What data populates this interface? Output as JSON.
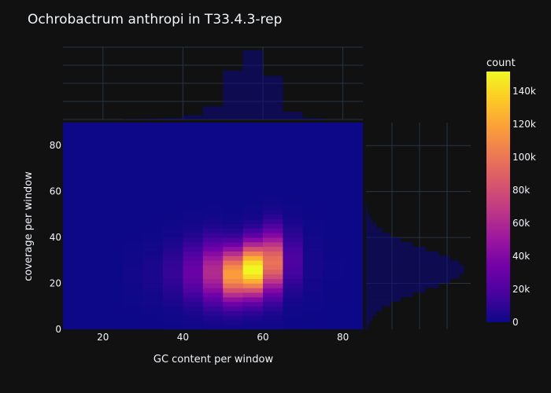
{
  "chart_data": {
    "type": "heatmap",
    "title": "Ochrobactrum anthropi in T33.4.3-rep",
    "xlabel": "GC content per window",
    "ylabel": "coverage per window",
    "xlim": [
      10,
      85
    ],
    "ylim": [
      0,
      90
    ],
    "x_ticks": [
      20,
      40,
      60,
      80
    ],
    "y_ticks": [
      0,
      20,
      40,
      60,
      80
    ],
    "x_bin_width": 5,
    "y_bin_width": 2,
    "colorbar": {
      "title": "count",
      "range": [
        0,
        152000
      ],
      "ticks": [
        {
          "value": 0,
          "label": "0"
        },
        {
          "value": 20000,
          "label": "20k"
        },
        {
          "value": 40000,
          "label": "40k"
        },
        {
          "value": 60000,
          "label": "60k"
        },
        {
          "value": 80000,
          "label": "80k"
        },
        {
          "value": 100000,
          "label": "100k"
        },
        {
          "value": 120000,
          "label": "120k"
        },
        {
          "value": 140000,
          "label": "140k"
        }
      ],
      "colorscale": [
        "#0d0887",
        "#46039f",
        "#7201a8",
        "#9c179e",
        "#bd3786",
        "#d8576b",
        "#ed7953",
        "#fb9f3a",
        "#fdca26",
        "#f0f921"
      ]
    },
    "column_profiles": [
      {
        "x_center": 12.5,
        "peak": 0,
        "center": 24,
        "width": 10
      },
      {
        "x_center": 17.5,
        "peak": 0,
        "center": 24,
        "width": 10
      },
      {
        "x_center": 22.5,
        "peak": 0,
        "center": 24,
        "width": 10
      },
      {
        "x_center": 27.5,
        "peak": 1500,
        "center": 24,
        "width": 9
      },
      {
        "x_center": 32.5,
        "peak": 4000,
        "center": 24,
        "width": 9
      },
      {
        "x_center": 37.5,
        "peak": 12000,
        "center": 25,
        "width": 9
      },
      {
        "x_center": 42.5,
        "peak": 30000,
        "center": 25,
        "width": 9
      },
      {
        "x_center": 47.5,
        "peak": 62000,
        "center": 25,
        "width": 9
      },
      {
        "x_center": 52.5,
        "peak": 118000,
        "center": 24,
        "width": 8
      },
      {
        "x_center": 57.5,
        "peak": 152000,
        "center": 26,
        "width": 8
      },
      {
        "x_center": 62.5,
        "peak": 98000,
        "center": 29,
        "width": 9
      },
      {
        "x_center": 67.5,
        "peak": 20000,
        "center": 30,
        "width": 9
      },
      {
        "x_center": 72.5,
        "peak": 3000,
        "center": 28,
        "width": 10
      },
      {
        "x_center": 77.5,
        "peak": 500,
        "center": 26,
        "width": 10
      },
      {
        "x_center": 82.5,
        "peak": 0,
        "center": 26,
        "width": 10
      }
    ],
    "top_histogram": {
      "x_centers": [
        12.5,
        17.5,
        22.5,
        27.5,
        32.5,
        37.5,
        42.5,
        47.5,
        52.5,
        57.5,
        62.5,
        67.5,
        72.5,
        77.5,
        82.5
      ],
      "relative_heights": [
        0,
        0,
        0,
        0.005,
        0.01,
        0.02,
        0.06,
        0.19,
        0.71,
        1.0,
        0.63,
        0.11,
        0.02,
        0,
        0
      ]
    },
    "right_histogram": {
      "note_units": "relative counts by coverage",
      "center": 26,
      "width": 9
    }
  }
}
